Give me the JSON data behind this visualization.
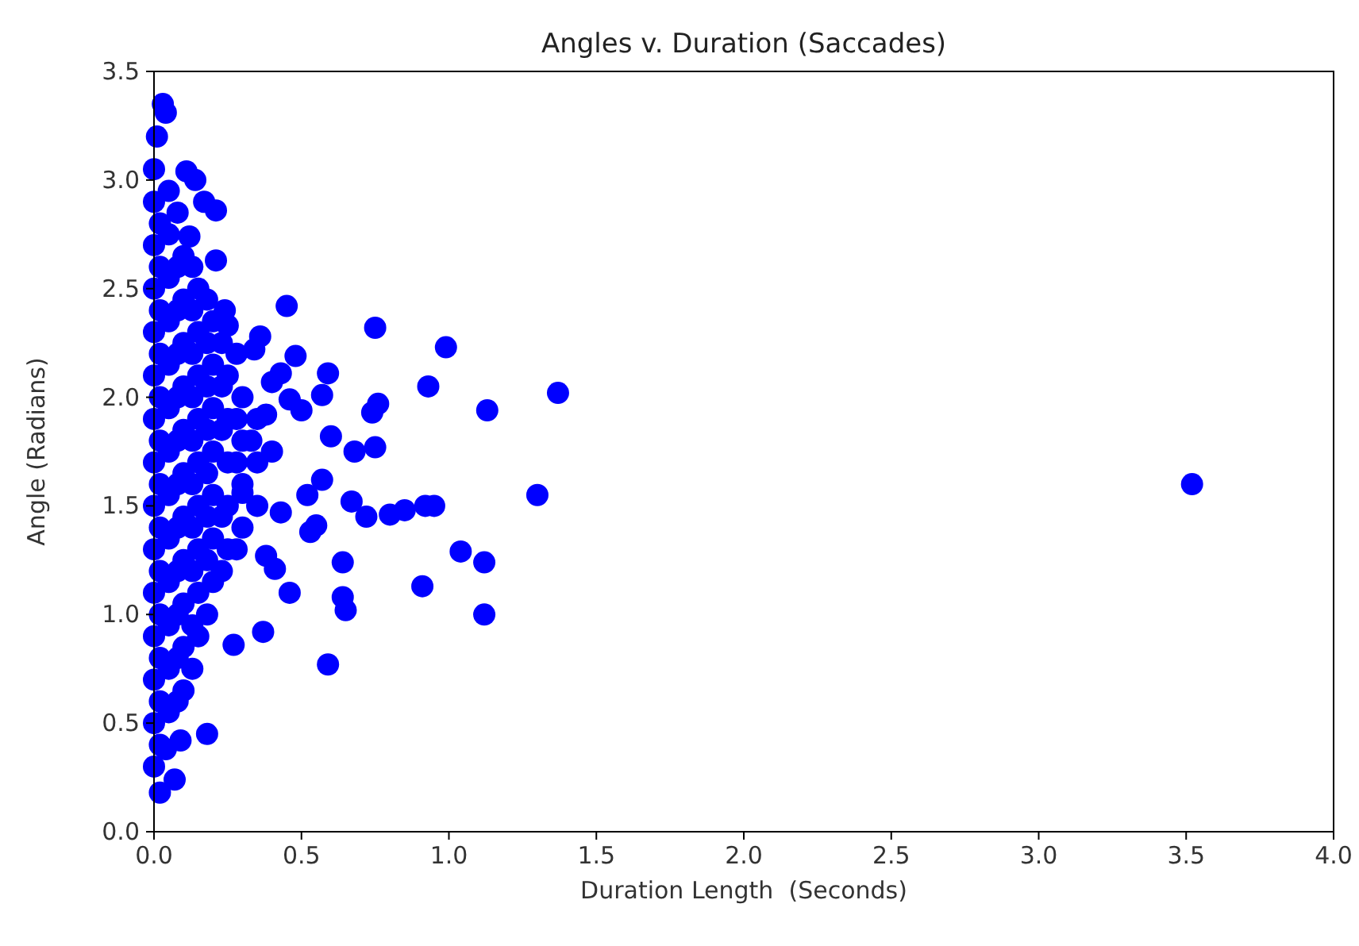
{
  "chart_data": {
    "type": "scatter",
    "title": "Angles v. Duration (Saccades)",
    "xlabel": "Duration Length  (Seconds)",
    "ylabel": "Angle (Radians)",
    "xlim": [
      0,
      4
    ],
    "ylim": [
      0,
      3.5
    ],
    "xticks": [
      {
        "value": 0,
        "label": "0.0"
      },
      {
        "value": 0.5,
        "label": "0.5"
      },
      {
        "value": 1,
        "label": "1.0"
      },
      {
        "value": 1.5,
        "label": "1.5"
      },
      {
        "value": 2,
        "label": "2.0"
      },
      {
        "value": 2.5,
        "label": "2.5"
      },
      {
        "value": 3,
        "label": "3.0"
      },
      {
        "value": 3.5,
        "label": "3.5"
      },
      {
        "value": 4,
        "label": "4.0"
      }
    ],
    "yticks": [
      {
        "value": 0,
        "label": "0.0"
      },
      {
        "value": 0.5,
        "label": "0.5"
      },
      {
        "value": 1,
        "label": "1.0"
      },
      {
        "value": 1.5,
        "label": "1.5"
      },
      {
        "value": 2,
        "label": "2.0"
      },
      {
        "value": 2.5,
        "label": "2.5"
      },
      {
        "value": 3,
        "label": "3.0"
      },
      {
        "value": 3.5,
        "label": "3.5"
      }
    ],
    "grid": false,
    "marker": "circle",
    "series": [
      {
        "color": "#0000ff",
        "x": [
          3.52,
          1.37,
          1.3,
          1.13,
          1.12,
          1.12,
          1.04,
          0.99,
          0.93,
          0.91,
          0.95,
          0.92,
          0.85,
          0.8,
          0.76,
          0.74,
          0.75,
          0.75,
          0.72,
          0.67,
          0.68,
          0.64,
          0.64,
          0.65,
          0.59,
          0.59,
          0.57,
          0.6,
          0.57,
          0.55,
          0.53,
          0.52,
          0.5,
          0.48,
          0.46,
          0.45,
          0.46,
          0.43,
          0.43,
          0.4,
          0.38,
          0.37,
          0.36,
          0.34,
          0.33,
          0.38,
          0.41,
          0.3,
          0.27,
          0.25,
          0.24,
          0.21,
          0.21,
          0.17,
          0.14,
          0.11,
          0.12,
          0.18,
          0.09,
          0.07,
          0.04,
          0.02,
          0.04,
          0.03,
          0.01,
          0,
          0,
          0,
          0,
          0,
          0,
          0,
          0,
          0,
          0,
          0,
          0,
          0,
          0,
          0,
          0.05,
          0.05,
          0.05,
          0.05,
          0.05,
          0.05,
          0.05,
          0.05,
          0.05,
          0.05,
          0.05,
          0.05,
          0.05,
          0.1,
          0.1,
          0.1,
          0.1,
          0.1,
          0.1,
          0.1,
          0.1,
          0.1,
          0.1,
          0.1,
          0.15,
          0.15,
          0.15,
          0.15,
          0.15,
          0.15,
          0.15,
          0.15,
          0.15,
          0.2,
          0.2,
          0.2,
          0.2,
          0.2,
          0.2,
          0.2,
          0.25,
          0.25,
          0.25,
          0.25,
          0.25,
          0.3,
          0.3,
          0.3,
          0.3,
          0.35,
          0.35,
          0.35,
          0.4,
          0.02,
          0.02,
          0.02,
          0.02,
          0.02,
          0.02,
          0.02,
          0.02,
          0.02,
          0.02,
          0.02,
          0.02,
          0.02,
          0.08,
          0.08,
          0.08,
          0.08,
          0.08,
          0.08,
          0.08,
          0.08,
          0.08,
          0.08,
          0.08,
          0.08,
          0.13,
          0.13,
          0.13,
          0.13,
          0.13,
          0.13,
          0.13,
          0.13,
          0.13,
          0.13,
          0.18,
          0.18,
          0.18,
          0.18,
          0.18,
          0.18,
          0.18,
          0.18,
          0.23,
          0.23,
          0.23,
          0.23,
          0.23,
          0.28,
          0.28,
          0.28,
          0.28
        ],
        "values": [
          1.6,
          2.02,
          1.55,
          1.94,
          1.0,
          1.24,
          1.29,
          2.23,
          2.05,
          1.13,
          1.5,
          1.5,
          1.48,
          1.46,
          1.97,
          1.93,
          2.32,
          1.77,
          1.45,
          1.52,
          1.75,
          1.24,
          1.08,
          1.02,
          0.77,
          2.11,
          2.01,
          1.82,
          1.62,
          1.41,
          1.38,
          1.55,
          1.94,
          2.19,
          1.1,
          2.42,
          1.99,
          1.47,
          2.11,
          2.07,
          1.92,
          0.92,
          2.28,
          2.22,
          1.8,
          1.27,
          1.21,
          1.56,
          0.86,
          2.33,
          2.4,
          2.63,
          2.86,
          2.9,
          3.0,
          3.04,
          2.74,
          0.45,
          0.42,
          0.24,
          0.38,
          0.18,
          3.31,
          3.35,
          3.2,
          0.3,
          0.5,
          0.7,
          0.9,
          1.1,
          1.3,
          1.5,
          1.7,
          1.9,
          2.1,
          2.3,
          2.5,
          2.7,
          2.9,
          3.05,
          0.55,
          0.75,
          0.95,
          1.15,
          1.35,
          1.55,
          1.75,
          1.95,
          2.15,
          2.35,
          2.55,
          2.75,
          2.95,
          0.65,
          0.85,
          1.05,
          1.25,
          1.45,
          1.65,
          1.85,
          2.05,
          2.25,
          2.45,
          2.65,
          0.9,
          1.1,
          1.3,
          1.5,
          1.7,
          1.9,
          2.1,
          2.3,
          2.5,
          1.15,
          1.35,
          1.55,
          1.75,
          1.95,
          2.15,
          2.35,
          1.3,
          1.5,
          1.7,
          1.9,
          2.1,
          1.4,
          1.6,
          1.8,
          2.0,
          1.5,
          1.7,
          1.9,
          1.75,
          0.4,
          0.6,
          0.8,
          1.0,
          1.2,
          1.4,
          1.6,
          1.8,
          2.0,
          2.2,
          2.4,
          2.6,
          2.8,
          0.6,
          0.8,
          1.0,
          1.2,
          1.4,
          1.6,
          1.8,
          2.0,
          2.2,
          2.4,
          2.6,
          2.85,
          0.75,
          0.95,
          1.2,
          1.4,
          1.6,
          1.8,
          2.0,
          2.2,
          2.4,
          2.6,
          1.0,
          1.25,
          1.45,
          1.65,
          1.85,
          2.05,
          2.25,
          2.45,
          1.2,
          1.45,
          1.85,
          2.05,
          2.25,
          1.3,
          1.7,
          1.9,
          2.2
        ]
      }
    ]
  }
}
